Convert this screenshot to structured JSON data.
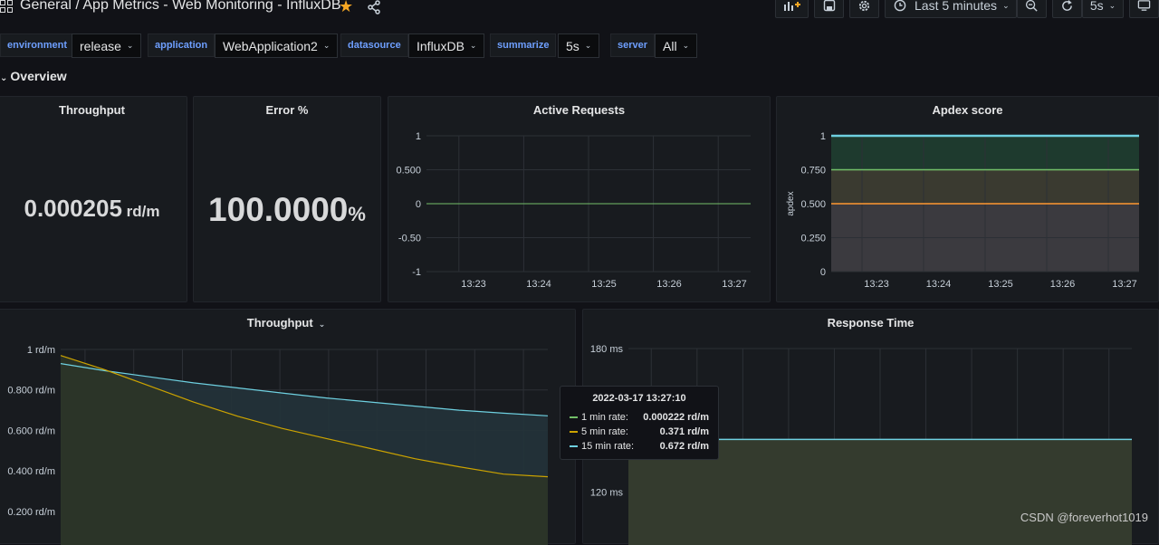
{
  "header": {
    "breadcrumb": "General  / App Metrics - Web Monitoring - InfluxDB",
    "time_range": "Last 5 minutes",
    "refresh": "5s"
  },
  "variables": [
    {
      "label": "environment",
      "value": "release"
    },
    {
      "label": "application",
      "value": "WebApplication2"
    },
    {
      "label": "datasource",
      "value": "InfluxDB"
    },
    {
      "label": "summarize",
      "value": "5s"
    },
    {
      "label": "server",
      "value": "All"
    }
  ],
  "row": {
    "title": "Overview"
  },
  "panels": {
    "throughput_stat": {
      "title": "Throughput",
      "value": "0.000205",
      "unit": " rd/m"
    },
    "error_stat": {
      "title": "Error %",
      "value": "100.0000",
      "unit": "%"
    },
    "active_requests": {
      "title": "Active Requests"
    },
    "apdex": {
      "title": "Apdex score",
      "ylabel": "apdex"
    },
    "throughput_graph": {
      "title": "Throughput"
    },
    "response_time": {
      "title": "Response Time"
    }
  },
  "chart_data": [
    {
      "type": "line",
      "title": "Active Requests",
      "x": [
        "13:23",
        "13:24",
        "13:25",
        "13:26",
        "13:27"
      ],
      "yticks": [
        "1",
        "0.500",
        "0",
        "-0.50",
        "-1"
      ],
      "ylim": [
        -1,
        1
      ],
      "series": [
        {
          "values": [
            0,
            0,
            0,
            0,
            0
          ]
        }
      ],
      "colors": {
        "line": "#73bf69"
      }
    },
    {
      "type": "area",
      "title": "Apdex score",
      "ylabel": "apdex",
      "x": [
        "13:23",
        "13:24",
        "13:25",
        "13:26",
        "13:27"
      ],
      "yticks": [
        "1",
        "0.750",
        "0.500",
        "0.250",
        "0"
      ],
      "ylim": [
        0,
        1
      ],
      "series": [
        {
          "values": [
            1,
            1,
            1,
            1,
            1
          ]
        }
      ],
      "thresholds": [
        0.75,
        0.5
      ],
      "colors": {
        "line": "#6ed0e0",
        "threshold_high": "#73bf69",
        "threshold_mid": "#ff9830"
      }
    },
    {
      "type": "line",
      "title": "Throughput",
      "yticks": [
        "1 rd/m",
        "0.800 rd/m",
        "0.600 rd/m",
        "0.400 rd/m",
        "0.200 rd/m"
      ],
      "ylim": [
        0.15,
        1
      ],
      "series": [
        {
          "name": "5 min rate",
          "values": [
            0.97,
            0.9,
            0.82,
            0.74,
            0.67,
            0.61,
            0.56,
            0.51,
            0.46,
            0.42,
            0.384,
            0.371
          ]
        },
        {
          "name": "15 min rate",
          "values": [
            0.93,
            0.895,
            0.865,
            0.835,
            0.81,
            0.785,
            0.76,
            0.74,
            0.72,
            0.7,
            0.685,
            0.672
          ]
        }
      ],
      "colors": {
        "5 min rate": "#cca300",
        "15 min rate": "#6ed0e0"
      }
    },
    {
      "type": "area",
      "title": "Response Time",
      "yticks": [
        "180 ms",
        "120 ms"
      ],
      "ylim": [
        113,
        180
      ],
      "series": [
        {
          "values": [
            142,
            142,
            142,
            142,
            142,
            142,
            142,
            142,
            142,
            142,
            142
          ]
        }
      ],
      "colors": {
        "line": "#73bf69"
      }
    }
  ],
  "tooltip": {
    "time": "2022-03-17 13:27:10",
    "rows": [
      {
        "label": "1 min rate:",
        "value": "0.000222 rd/m",
        "color": "#73bf69"
      },
      {
        "label": "5 min rate:",
        "value": "0.371 rd/m",
        "color": "#cca300"
      },
      {
        "label": "15 min rate:",
        "value": "0.672 rd/m",
        "color": "#6ed0e0"
      }
    ]
  },
  "watermark": "CSDN @foreverhot1019"
}
